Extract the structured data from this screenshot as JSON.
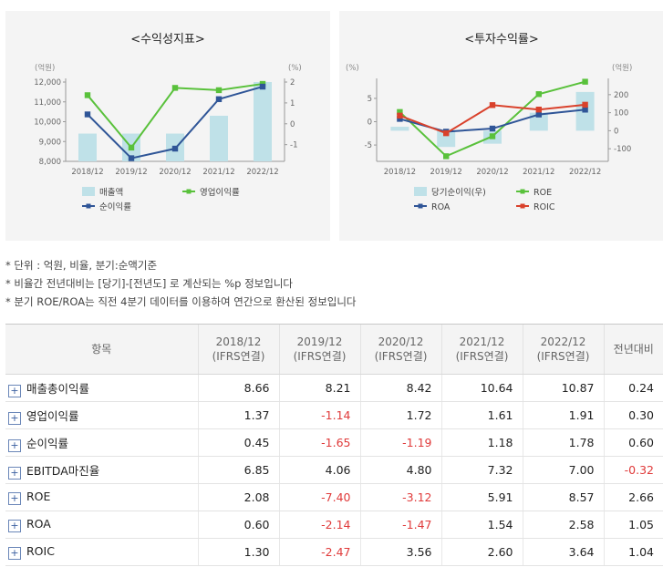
{
  "left_chart": {
    "title": "<수익성지표>",
    "left_unit": "(억원)",
    "right_unit": "(%)",
    "left_ticks": [
      "12,000",
      "11,000",
      "10,000",
      "9,000",
      "8,000"
    ],
    "right_ticks": [
      "2",
      "1",
      "0",
      "-1"
    ],
    "legend": {
      "bar": "매출액",
      "line1": "영업이익률",
      "line2": "순이익률"
    }
  },
  "right_chart": {
    "title": "<투자수익률>",
    "left_unit": "(%)",
    "right_unit": "(억원)",
    "left_ticks": [
      "5",
      "0",
      "-5"
    ],
    "right_ticks": [
      "200",
      "100",
      "0",
      "-100"
    ],
    "legend": {
      "bar": "당기순이익(우)",
      "line1": "ROE",
      "line2": "ROA",
      "line3": "ROIC"
    }
  },
  "chart_data": [
    {
      "type": "bar+line",
      "title": "<수익성지표>",
      "categories": [
        "2018/12",
        "2019/12",
        "2020/12",
        "2021/12",
        "2022/12"
      ],
      "bar_series": {
        "name": "매출액",
        "axis": "left",
        "unit": "억원",
        "values": [
          9400,
          9400,
          9400,
          10300,
          12000
        ]
      },
      "line_series": [
        {
          "name": "영업이익률",
          "axis": "right",
          "color": "#59c13b",
          "values": [
            1.37,
            -1.14,
            1.72,
            1.61,
            1.91
          ]
        },
        {
          "name": "순이익률",
          "axis": "right",
          "color": "#2f5597",
          "values": [
            0.45,
            -1.65,
            -1.19,
            1.18,
            1.78
          ]
        }
      ],
      "ylim_left": [
        8000,
        12000
      ],
      "ylim_right": [
        -1.8,
        2
      ]
    },
    {
      "type": "bar+line",
      "title": "<투자수익률>",
      "categories": [
        "2018/12",
        "2019/12",
        "2020/12",
        "2021/12",
        "2022/12"
      ],
      "bar_series": {
        "name": "당기순이익(우)",
        "axis": "right",
        "unit": "억원",
        "values": [
          22,
          -90,
          -72,
          100,
          215
        ]
      },
      "line_series": [
        {
          "name": "ROE",
          "axis": "left",
          "color": "#59c13b",
          "values": [
            2.08,
            -7.4,
            -3.12,
            5.91,
            8.57
          ]
        },
        {
          "name": "ROA",
          "axis": "left",
          "color": "#2f5597",
          "values": [
            0.6,
            -2.14,
            -1.47,
            1.54,
            2.58
          ]
        },
        {
          "name": "ROIC",
          "axis": "left",
          "color": "#d9412b",
          "values": [
            1.3,
            -2.47,
            3.56,
            2.6,
            3.64
          ]
        }
      ],
      "ylim_left": [
        -8.5,
        8.5
      ],
      "ylim_right": [
        -170,
        270
      ]
    }
  ],
  "notes": [
    "* 단위 : 억원, 비율, 분기:순액기준",
    "* 비율간 전년대비는 [당기]-[전년도] 로 계산되는 %p 정보입니다",
    "* 분기 ROE/ROA는 직전 4분기 데이터를 이용하여 연간으로 환산된 정보입니다"
  ],
  "table": {
    "header_item": "항목",
    "header_yoy": "전년대비",
    "columns": [
      {
        "year": "2018/12",
        "sub": "(IFRS연결)"
      },
      {
        "year": "2019/12",
        "sub": "(IFRS연결)"
      },
      {
        "year": "2020/12",
        "sub": "(IFRS연결)"
      },
      {
        "year": "2021/12",
        "sub": "(IFRS연결)"
      },
      {
        "year": "2022/12",
        "sub": "(IFRS연결)"
      }
    ],
    "expand_symbol": "+",
    "rows": [
      {
        "label": "매출총이익률",
        "values": [
          "8.66",
          "8.21",
          "8.42",
          "10.64",
          "10.87"
        ],
        "yoy": "0.24"
      },
      {
        "label": "영업이익률",
        "values": [
          "1.37",
          "-1.14",
          "1.72",
          "1.61",
          "1.91"
        ],
        "yoy": "0.30"
      },
      {
        "label": "순이익률",
        "values": [
          "0.45",
          "-1.65",
          "-1.19",
          "1.18",
          "1.78"
        ],
        "yoy": "0.60"
      },
      {
        "label": "EBITDA마진율",
        "values": [
          "6.85",
          "4.06",
          "4.80",
          "7.32",
          "7.00"
        ],
        "yoy": "-0.32"
      },
      {
        "label": "ROE",
        "values": [
          "2.08",
          "-7.40",
          "-3.12",
          "5.91",
          "8.57"
        ],
        "yoy": "2.66"
      },
      {
        "label": "ROA",
        "values": [
          "0.60",
          "-2.14",
          "-1.47",
          "1.54",
          "2.58"
        ],
        "yoy": "1.05"
      },
      {
        "label": "ROIC",
        "values": [
          "1.30",
          "-2.47",
          "3.56",
          "2.60",
          "3.64"
        ],
        "yoy": "1.04"
      }
    ]
  },
  "colors": {
    "bar": "#bfe1e8",
    "negative": "#e03a3a"
  }
}
